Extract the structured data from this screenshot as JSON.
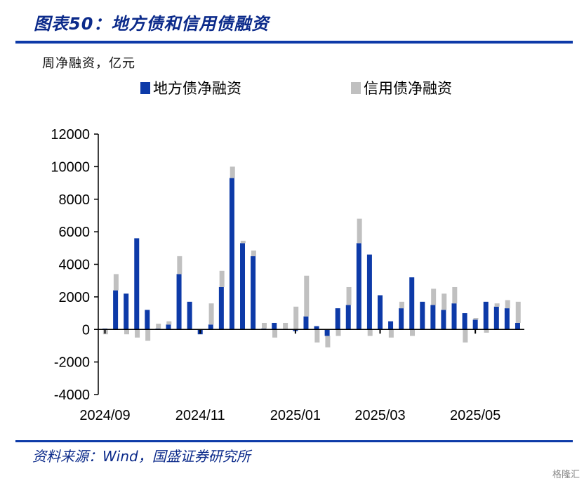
{
  "title": "图表50：地方债和信用债融资",
  "ylabel": "周净融资，亿元",
  "source": "资料来源：Wind，国盛证券研究所",
  "watermark": "格隆汇",
  "colors": {
    "local": "#0d3aa8",
    "credit": "#c0c0c0",
    "rule": "#0d3aa8"
  },
  "chart_data": {
    "type": "bar",
    "stacked": true,
    "ylim": [
      -4000,
      12000
    ],
    "yticks": [
      -4000,
      -2000,
      0,
      2000,
      4000,
      6000,
      8000,
      10000,
      12000
    ],
    "grid": false,
    "legend": "top",
    "x_tick_labels": [
      {
        "label": "2024/09",
        "index": 0
      },
      {
        "label": "2024/11",
        "index": 9
      },
      {
        "label": "2025/01",
        "index": 18
      },
      {
        "label": "2025/03",
        "index": 26
      },
      {
        "label": "2025/05",
        "index": 35
      }
    ],
    "series": [
      {
        "name": "地方债净融资",
        "color": "#0d3aa8",
        "values": [
          50,
          2400,
          2200,
          5600,
          1200,
          50,
          300,
          3400,
          1700,
          -300,
          300,
          2600,
          9300,
          5300,
          4500,
          50,
          400,
          0,
          -100,
          800,
          200,
          -400,
          1300,
          1500,
          5300,
          4600,
          2100,
          500,
          1300,
          3200,
          1700,
          1500,
          1200,
          1600,
          1000,
          600,
          1700,
          1400,
          1300,
          400
        ]
      },
      {
        "name": "信用债净融资",
        "color": "#c0c0c0",
        "values": [
          -300,
          1000,
          -300,
          -500,
          -700,
          300,
          200,
          1100,
          0,
          0,
          1300,
          1000,
          700,
          150,
          350,
          350,
          -500,
          400,
          1400,
          2500,
          -800,
          -700,
          -400,
          1100,
          1500,
          -400,
          0,
          -500,
          400,
          -400,
          0,
          1000,
          1000,
          1000,
          -800,
          100,
          -200,
          200,
          500,
          1300
        ]
      }
    ]
  }
}
